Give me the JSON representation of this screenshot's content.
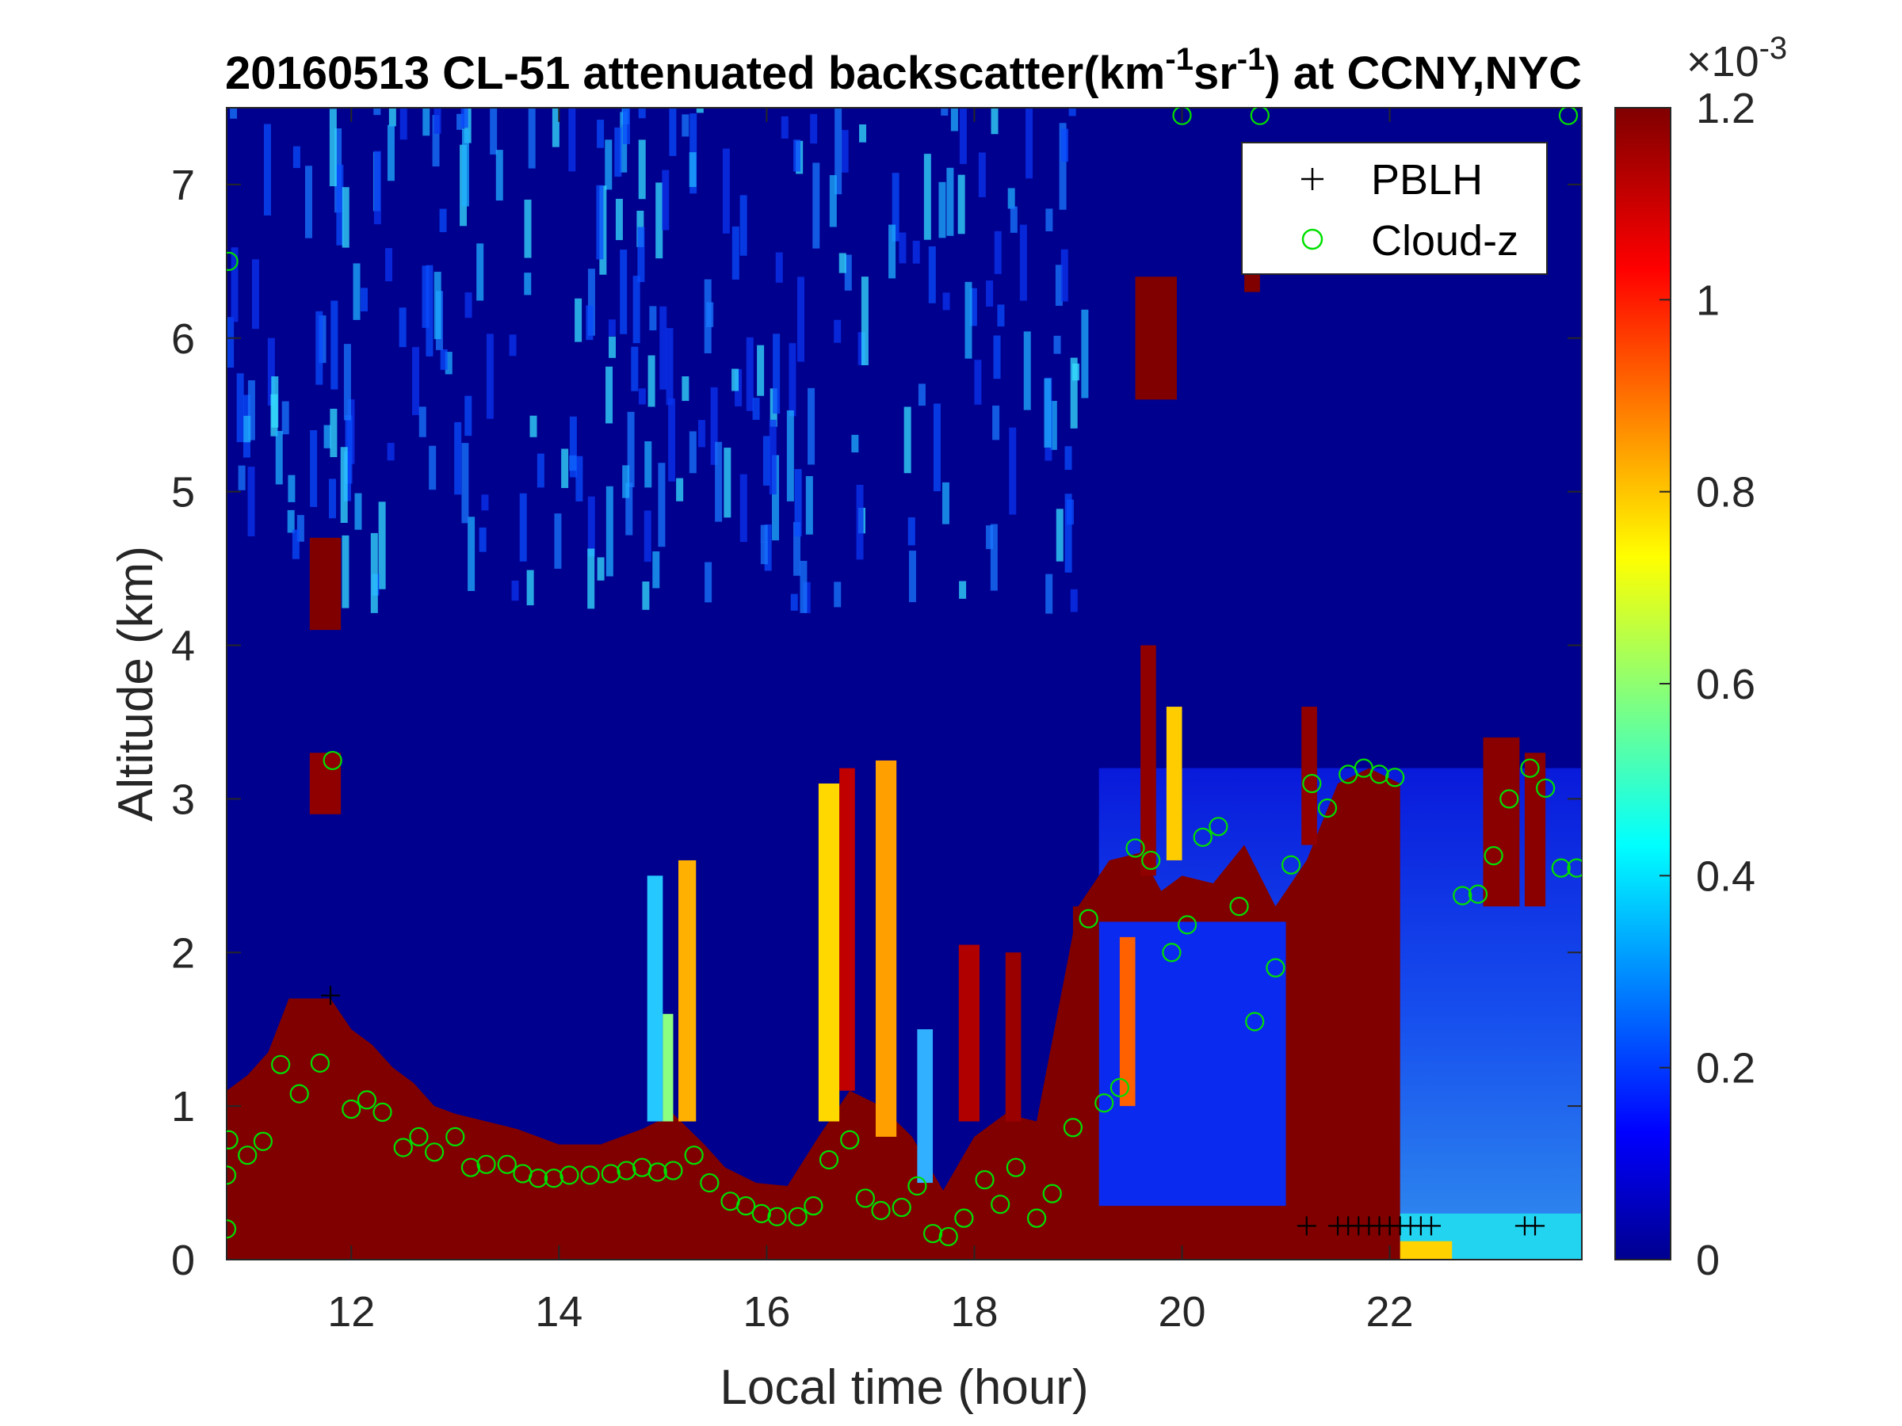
{
  "chart_data": {
    "type": "heatmap",
    "title": {
      "prefix": "20160513  CL-51 attenuated backscatter(km",
      "exp1": "-1",
      "mid": "sr",
      "exp2": "-1",
      "suffix": ") at CCNY,NYC"
    },
    "xlabel": "Local time (hour)",
    "ylabel": "Altitude (km)",
    "xlim": [
      10.8,
      23.85
    ],
    "ylim": [
      0,
      7.5
    ],
    "xticks": [
      "12",
      "14",
      "16",
      "18",
      "20",
      "22"
    ],
    "yticks": [
      "0",
      "1",
      "2",
      "3",
      "4",
      "5",
      "6",
      "7"
    ],
    "colorbar": {
      "range": [
        0,
        0.0012
      ],
      "ticks": [
        "0",
        "0.2",
        "0.4",
        "0.6",
        "0.8",
        "1",
        "1.2"
      ],
      "multiplier_base": "×10",
      "multiplier_exp": "-3",
      "colormap": "jet"
    },
    "legend": {
      "placement": "top-right",
      "entries": [
        {
          "label": "PBLH",
          "marker": "+",
          "color": "#000000"
        },
        {
          "label": "Cloud-z",
          "marker": "o",
          "color": "#00ff00"
        }
      ]
    },
    "boundary_layer_top_km": [
      [
        10.8,
        1.1
      ],
      [
        11.0,
        1.2
      ],
      [
        11.2,
        1.35
      ],
      [
        11.4,
        1.7
      ],
      [
        11.6,
        1.7
      ],
      [
        11.8,
        1.7
      ],
      [
        12.0,
        1.5
      ],
      [
        12.2,
        1.4
      ],
      [
        12.4,
        1.25
      ],
      [
        12.6,
        1.15
      ],
      [
        12.8,
        1.0
      ],
      [
        13.0,
        0.95
      ],
      [
        13.3,
        0.9
      ],
      [
        13.6,
        0.85
      ],
      [
        14.0,
        0.75
      ],
      [
        14.4,
        0.75
      ],
      [
        14.8,
        0.85
      ],
      [
        15.1,
        0.95
      ],
      [
        15.4,
        0.75
      ],
      [
        15.6,
        0.6
      ],
      [
        15.9,
        0.5
      ],
      [
        16.2,
        0.48
      ],
      [
        16.5,
        0.8
      ],
      [
        16.8,
        1.1
      ],
      [
        17.1,
        1.0
      ],
      [
        17.4,
        0.8
      ],
      [
        17.7,
        0.45
      ],
      [
        18.0,
        0.8
      ],
      [
        18.3,
        0.95
      ],
      [
        18.6,
        0.9
      ],
      [
        19.0,
        2.3
      ],
      [
        19.3,
        2.6
      ],
      [
        19.6,
        2.65
      ],
      [
        19.8,
        2.4
      ],
      [
        20.0,
        2.5
      ],
      [
        20.3,
        2.45
      ],
      [
        20.6,
        2.7
      ],
      [
        20.9,
        2.3
      ],
      [
        21.2,
        2.6
      ],
      [
        21.5,
        3.1
      ],
      [
        21.8,
        3.2
      ],
      [
        22.1,
        3.1
      ]
    ],
    "aerosol_layer_top_km": [
      [
        19.2,
        0.35
      ],
      [
        19.8,
        0.33
      ],
      [
        20.4,
        0.32
      ],
      [
        21.0,
        0.3
      ],
      [
        21.5,
        0.3
      ],
      [
        22.0,
        0.3
      ],
      [
        22.5,
        0.3
      ],
      [
        23.0,
        0.3
      ],
      [
        23.85,
        0.3
      ]
    ],
    "pblh_points": [
      [
        11.8,
        1.72
      ],
      [
        21.2,
        0.22
      ],
      [
        21.5,
        0.22
      ],
      [
        21.6,
        0.22
      ],
      [
        21.7,
        0.22
      ],
      [
        21.8,
        0.22
      ],
      [
        21.9,
        0.22
      ],
      [
        22.0,
        0.22
      ],
      [
        22.1,
        0.22
      ],
      [
        22.2,
        0.22
      ],
      [
        22.3,
        0.22
      ],
      [
        22.4,
        0.22
      ],
      [
        23.3,
        0.22
      ],
      [
        23.4,
        0.22
      ]
    ],
    "cloud_z_points": [
      [
        10.8,
        0.2
      ],
      [
        10.8,
        0.55
      ],
      [
        10.82,
        0.78
      ],
      [
        10.82,
        6.5
      ],
      [
        11.0,
        0.68
      ],
      [
        11.15,
        0.77
      ],
      [
        11.5,
        1.08
      ],
      [
        11.7,
        1.28
      ],
      [
        11.32,
        1.27
      ],
      [
        11.82,
        3.25
      ],
      [
        12.0,
        0.98
      ],
      [
        12.15,
        1.04
      ],
      [
        12.3,
        0.96
      ],
      [
        12.5,
        0.73
      ],
      [
        12.65,
        0.8
      ],
      [
        12.8,
        0.7
      ],
      [
        13.0,
        0.8
      ],
      [
        13.15,
        0.6
      ],
      [
        13.3,
        0.62
      ],
      [
        13.5,
        0.62
      ],
      [
        13.65,
        0.56
      ],
      [
        13.8,
        0.53
      ],
      [
        13.95,
        0.53
      ],
      [
        14.1,
        0.55
      ],
      [
        14.3,
        0.55
      ],
      [
        14.5,
        0.56
      ],
      [
        14.65,
        0.58
      ],
      [
        14.8,
        0.6
      ],
      [
        14.95,
        0.57
      ],
      [
        15.1,
        0.58
      ],
      [
        15.3,
        0.68
      ],
      [
        15.45,
        0.5
      ],
      [
        15.65,
        0.38
      ],
      [
        15.8,
        0.35
      ],
      [
        15.95,
        0.3
      ],
      [
        16.1,
        0.28
      ],
      [
        16.3,
        0.28
      ],
      [
        16.45,
        0.35
      ],
      [
        16.6,
        0.65
      ],
      [
        16.8,
        0.78
      ],
      [
        16.95,
        0.4
      ],
      [
        17.1,
        0.32
      ],
      [
        17.3,
        0.34
      ],
      [
        17.45,
        0.48
      ],
      [
        17.6,
        0.17
      ],
      [
        17.75,
        0.15
      ],
      [
        17.9,
        0.27
      ],
      [
        18.1,
        0.52
      ],
      [
        18.25,
        0.36
      ],
      [
        18.4,
        0.6
      ],
      [
        18.6,
        0.27
      ],
      [
        18.75,
        0.43
      ],
      [
        18.95,
        0.86
      ],
      [
        19.1,
        2.22
      ],
      [
        19.25,
        1.02
      ],
      [
        19.4,
        1.12
      ],
      [
        19.55,
        2.68
      ],
      [
        19.7,
        2.6
      ],
      [
        19.9,
        2.0
      ],
      [
        20.0,
        7.45
      ],
      [
        20.05,
        2.18
      ],
      [
        20.2,
        2.75
      ],
      [
        20.35,
        2.82
      ],
      [
        20.55,
        2.3
      ],
      [
        20.7,
        1.55
      ],
      [
        20.75,
        7.45
      ],
      [
        20.9,
        1.9
      ],
      [
        21.05,
        2.57
      ],
      [
        21.25,
        3.1
      ],
      [
        21.4,
        2.94
      ],
      [
        21.6,
        3.16
      ],
      [
        21.75,
        3.2
      ],
      [
        21.9,
        3.16
      ],
      [
        22.05,
        3.14
      ],
      [
        22.7,
        2.37
      ],
      [
        22.85,
        2.38
      ],
      [
        23.0,
        2.63
      ],
      [
        23.15,
        3.0
      ],
      [
        23.35,
        3.2
      ],
      [
        23.5,
        3.07
      ],
      [
        23.65,
        2.55
      ],
      [
        23.8,
        2.55
      ],
      [
        23.72,
        7.45
      ]
    ]
  }
}
